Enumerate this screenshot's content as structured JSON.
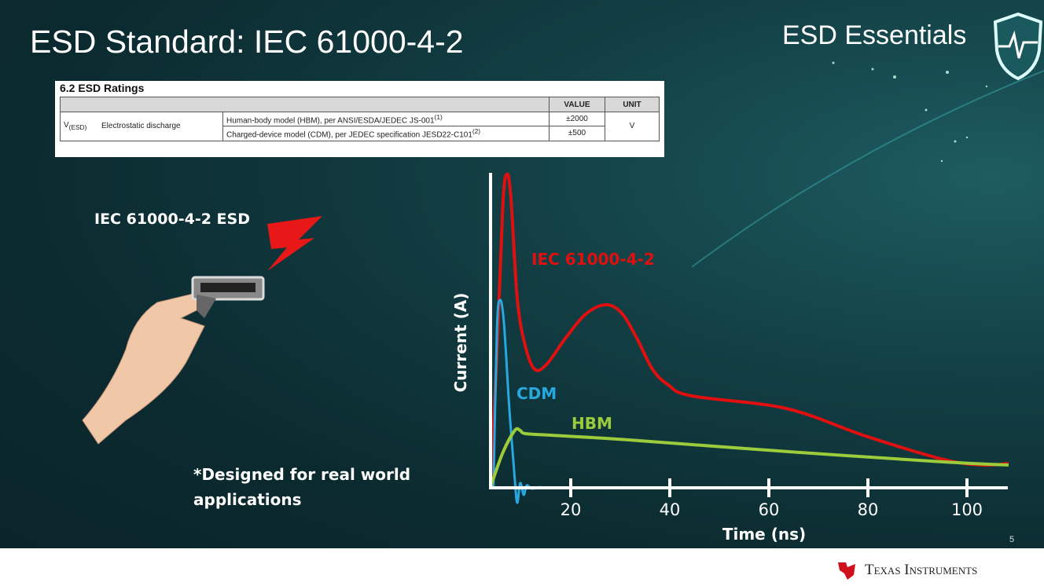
{
  "slide": {
    "title": "ESD Standard: IEC 61000-4-2",
    "brand": "ESD Essentials",
    "page_number": "5",
    "footer_logo": "Texas Instruments",
    "left_heading": "IEC 61000-4-2 ESD",
    "note_line1": "*Designed for real world",
    "note_line2": "applications"
  },
  "ratings_table": {
    "caption": "6.2   ESD Ratings",
    "headers": [
      "VALUE",
      "UNIT"
    ],
    "symbol": "V",
    "symbol_sub": "(ESD)",
    "parameter": "Electrostatic discharge",
    "rows": [
      {
        "condition": "Human-body model (HBM), per ANSI/ESDA/JEDEC JS-001",
        "note": "(1)",
        "value": "±2000"
      },
      {
        "condition": "Charged-device model (CDM), per JEDEC specification JESD22-C101",
        "note": "(2)",
        "value": "±500"
      }
    ],
    "unit": "V"
  },
  "chart_data": {
    "type": "line",
    "xlabel": "Time (ns)",
    "ylabel": "Current (A)",
    "xlim": [
      3.8,
      108.5
    ],
    "ylim": [
      0,
      1
    ],
    "xticks": [
      20,
      40,
      60,
      80,
      100
    ],
    "grid": false,
    "series": [
      {
        "name": "IEC 61000-4-2",
        "color": "#e01010",
        "x": [
          3.8,
          5.1,
          6.3,
          7.1,
          7.9,
          9.2,
          10.8,
          12.7,
          15.1,
          19.0,
          23.0,
          27.0,
          30.2,
          33.3,
          36.5,
          39.7,
          44.4,
          63.5,
          79.4,
          95.2,
          103.2,
          108.4
        ],
        "y": [
          0,
          0.425,
          0.9,
          0.995,
          0.925,
          0.6,
          0.45,
          0.375,
          0.39,
          0.475,
          0.55,
          0.58,
          0.555,
          0.475,
          0.375,
          0.325,
          0.29,
          0.25,
          0.163,
          0.088,
          0.07,
          0.075
        ]
      },
      {
        "name": "CDM",
        "color": "#29a8e0",
        "x": [
          4.4,
          5.1,
          5.7,
          6.5,
          7.6,
          8.7,
          9.2,
          9.8,
          10.5,
          11.1,
          12.1,
          14.0
        ],
        "y": [
          0,
          0.5,
          0.595,
          0.525,
          0.25,
          0.025,
          -0.05,
          0.0125,
          -0.025,
          0.005,
          -0.005,
          0
        ]
      },
      {
        "name": "HBM",
        "color": "#9ccc3c",
        "x": [
          3.8,
          6.3,
          8.7,
          9.8,
          10.8,
          15.9,
          31.7,
          63.5,
          95.2,
          108.4
        ],
        "y": [
          0,
          0.11,
          0.18,
          0.18,
          0.17,
          0.165,
          0.15,
          0.113,
          0.08,
          0.07
        ]
      }
    ]
  }
}
